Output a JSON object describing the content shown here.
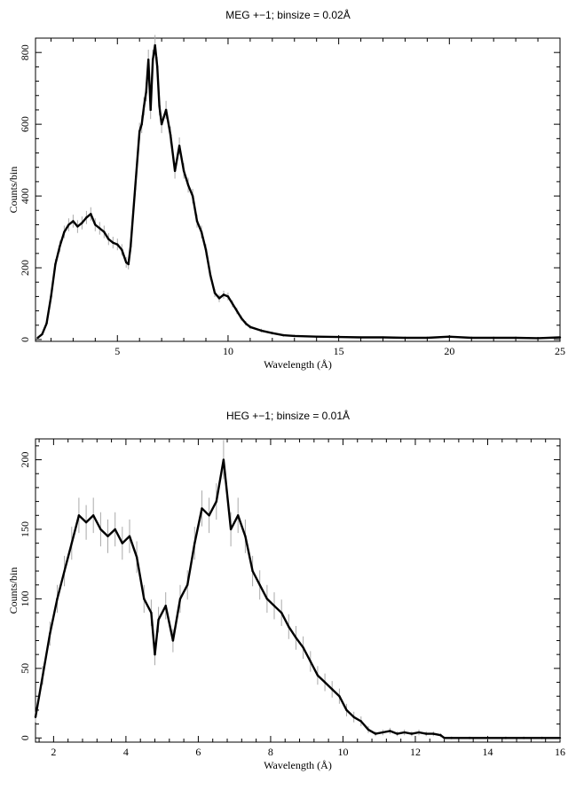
{
  "chart_data": [
    {
      "type": "line",
      "title": "MEG +−1; binsize = 0.02Å",
      "xlabel": "Wavelength (Å)",
      "ylabel": "Counts/bin",
      "xlim": [
        1.3,
        25
      ],
      "ylim": [
        -5,
        840
      ],
      "xticks": [
        5,
        10,
        15,
        20,
        25
      ],
      "yticks": [
        0,
        200,
        400,
        600,
        800
      ],
      "grid": false,
      "series": [
        {
          "x": [
            1.4,
            1.6,
            1.8,
            2.0,
            2.2,
            2.4,
            2.6,
            2.8,
            3.0,
            3.2,
            3.4,
            3.6,
            3.8,
            4.0,
            4.2,
            4.4,
            4.6,
            4.8,
            5.0,
            5.2,
            5.4,
            5.5,
            5.6,
            5.8,
            6.0,
            6.1,
            6.2,
            6.3,
            6.4,
            6.5,
            6.6,
            6.7,
            6.8,
            6.9,
            7.0,
            7.2,
            7.4,
            7.6,
            7.8,
            8.0,
            8.2,
            8.4,
            8.6,
            8.8,
            9.0,
            9.2,
            9.4,
            9.6,
            9.8,
            10.0,
            10.2,
            10.4,
            10.6,
            10.8,
            11.0,
            11.5,
            12.0,
            12.5,
            13.0,
            14.0,
            15.0,
            16.0,
            17.0,
            18.0,
            19.0,
            20.0,
            21.0,
            22.0,
            23.0,
            24.0,
            25.0
          ],
          "y": [
            5,
            15,
            45,
            120,
            210,
            260,
            300,
            320,
            330,
            315,
            325,
            340,
            350,
            320,
            310,
            300,
            280,
            270,
            265,
            250,
            215,
            210,
            260,
            420,
            580,
            600,
            650,
            690,
            780,
            640,
            780,
            820,
            760,
            650,
            600,
            640,
            570,
            470,
            540,
            470,
            430,
            400,
            330,
            300,
            250,
            180,
            130,
            115,
            125,
            120,
            100,
            80,
            60,
            45,
            35,
            25,
            18,
            12,
            10,
            8,
            7,
            6,
            6,
            5,
            5,
            8,
            5,
            5,
            5,
            4,
            6
          ]
        }
      ]
    },
    {
      "type": "line",
      "title": "HEG +−1; binsize = 0.01Å",
      "xlabel": "Wavelength (Å)",
      "ylabel": "Counts/bin",
      "xlim": [
        1.5,
        16
      ],
      "ylim": [
        -3,
        215
      ],
      "xticks": [
        2,
        4,
        6,
        8,
        10,
        12,
        14,
        16
      ],
      "yticks": [
        0,
        50,
        100,
        150,
        200
      ],
      "grid": false,
      "series": [
        {
          "x": [
            1.5,
            1.7,
            1.9,
            2.1,
            2.3,
            2.5,
            2.7,
            2.9,
            3.1,
            3.3,
            3.5,
            3.7,
            3.9,
            4.1,
            4.3,
            4.5,
            4.7,
            4.8,
            4.9,
            5.1,
            5.3,
            5.5,
            5.7,
            5.9,
            6.1,
            6.3,
            6.5,
            6.7,
            6.9,
            7.1,
            7.3,
            7.5,
            7.7,
            7.9,
            8.1,
            8.3,
            8.5,
            8.7,
            8.9,
            9.1,
            9.3,
            9.5,
            9.7,
            9.9,
            10.1,
            10.3,
            10.5,
            10.7,
            10.9,
            11.1,
            11.3,
            11.5,
            11.7,
            11.9,
            12.1,
            12.3,
            12.5,
            12.7,
            12.8,
            13.0,
            13.5,
            14.0,
            14.5,
            15.0,
            15.5,
            16.0
          ],
          "y": [
            15,
            45,
            75,
            100,
            120,
            140,
            160,
            155,
            160,
            150,
            145,
            150,
            140,
            145,
            130,
            100,
            90,
            60,
            85,
            95,
            70,
            100,
            110,
            140,
            165,
            160,
            170,
            200,
            150,
            160,
            145,
            120,
            110,
            100,
            95,
            90,
            80,
            72,
            65,
            55,
            45,
            40,
            35,
            30,
            20,
            15,
            12,
            6,
            3,
            4,
            5,
            3,
            4,
            3,
            4,
            3,
            3,
            2,
            0,
            0,
            0,
            0,
            0,
            0,
            0,
            0
          ]
        }
      ]
    }
  ]
}
